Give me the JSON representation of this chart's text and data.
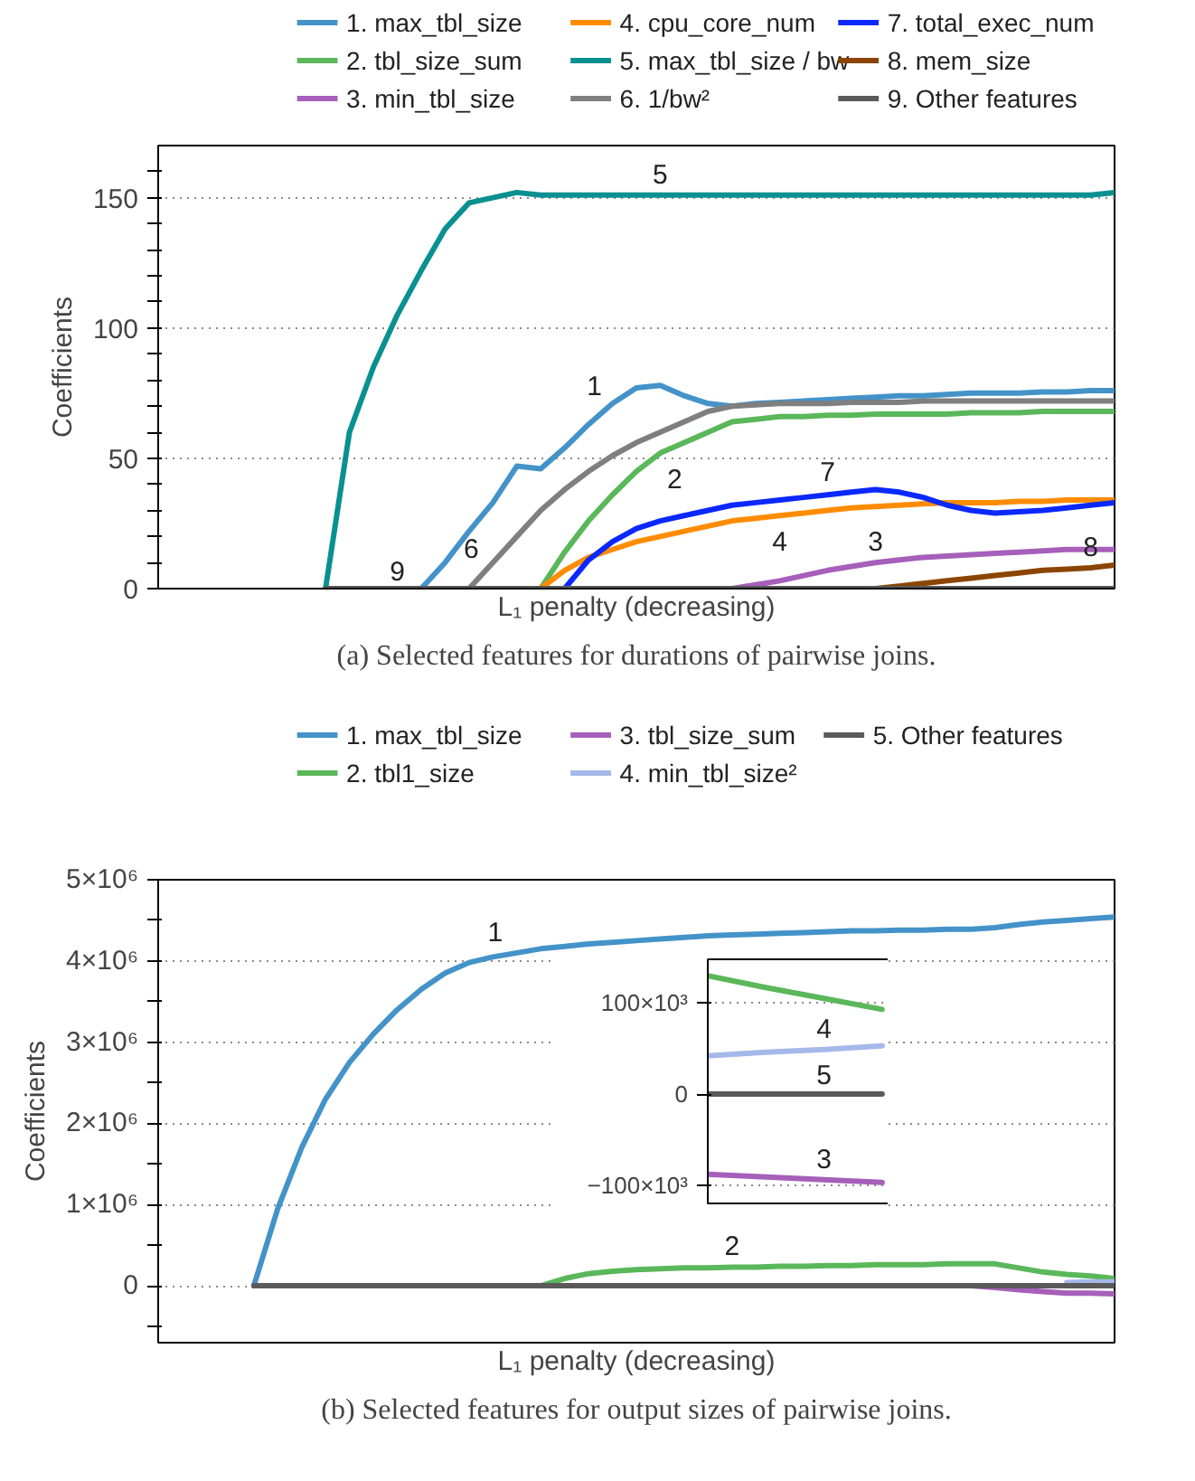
{
  "chart_data": [
    {
      "type": "line",
      "title": "(a) Selected features for durations of pairwise joins.",
      "xlabel": "L₁ penalty (decreasing)",
      "ylabel": "Coefficients",
      "legend": "top",
      "grid": "y",
      "tick_labels": "y",
      "categories": [
        null,
        null,
        null,
        null,
        null,
        null,
        null,
        null,
        null,
        null,
        null,
        null,
        null,
        null,
        null,
        null,
        null,
        null,
        null,
        null,
        null,
        null,
        null,
        null,
        null,
        null,
        null,
        null,
        null,
        null,
        null,
        null,
        null,
        null,
        null,
        null,
        null,
        null,
        null,
        null,
        null
      ],
      "ylim": [
        0,
        170
      ],
      "yticks": [
        0,
        {
          "value": 10,
          "label": null
        },
        {
          "value": 20,
          "label": null
        },
        {
          "value": 30,
          "label": null
        },
        {
          "value": 40,
          "label": null
        },
        50,
        {
          "value": 60,
          "label": null
        },
        {
          "value": 70,
          "label": null
        },
        {
          "value": 80,
          "label": null
        },
        {
          "value": 90,
          "label": null
        },
        100,
        {
          "value": 110,
          "label": null
        },
        {
          "value": 120,
          "label": null
        },
        {
          "value": 130,
          "label": null
        },
        {
          "value": 140,
          "label": null
        },
        150,
        {
          "value": 160,
          "label": null
        }
      ],
      "annotations": [
        "1",
        "2",
        "3",
        "4",
        "5",
        "6",
        "7",
        "8",
        "9"
      ],
      "series": [
        {
          "name": "1. max_tbl_size",
          "color": "#4393c9",
          "values": [
            null,
            null,
            null,
            null,
            null,
            null,
            null,
            null,
            null,
            null,
            null,
            0,
            10,
            22,
            33,
            47,
            46,
            54,
            63,
            71,
            77,
            78,
            74,
            71,
            70,
            71,
            71.5,
            72,
            72.5,
            73,
            73.5,
            74,
            74,
            74.5,
            75,
            75,
            75,
            75.5,
            75.5,
            76,
            76
          ]
        },
        {
          "name": "2. tbl_size_sum",
          "color": "#5ab75a",
          "values": [
            null,
            null,
            null,
            null,
            null,
            null,
            null,
            null,
            null,
            null,
            null,
            null,
            null,
            null,
            null,
            null,
            0,
            14,
            26,
            36,
            45,
            52,
            56,
            60,
            64,
            65,
            66,
            66,
            66.5,
            66.5,
            67,
            67,
            67,
            67,
            67.5,
            67.5,
            67.5,
            68,
            68,
            68,
            68
          ]
        },
        {
          "name": "3. min_tbl_size",
          "color": "#a65fba",
          "values": [
            null,
            null,
            null,
            null,
            null,
            null,
            null,
            null,
            null,
            null,
            null,
            null,
            null,
            null,
            null,
            null,
            null,
            null,
            null,
            null,
            null,
            null,
            null,
            null,
            0,
            1.5,
            3,
            5,
            7,
            8.5,
            10,
            11,
            12,
            12.5,
            13,
            13.5,
            14,
            14.5,
            15,
            15,
            15
          ]
        },
        {
          "name": "4. cpu_core_num",
          "color": "#ff8c00",
          "values": [
            null,
            null,
            null,
            null,
            null,
            null,
            null,
            null,
            null,
            null,
            null,
            null,
            null,
            null,
            null,
            null,
            0,
            7,
            12,
            15,
            18,
            20,
            22,
            24,
            26,
            27,
            28,
            29,
            30,
            31,
            31.5,
            32,
            32.5,
            33,
            33,
            33,
            33.5,
            33.5,
            34,
            34,
            34
          ]
        },
        {
          "name": "5. max_tbl_size / bw",
          "color": "#0a9090",
          "values": [
            null,
            null,
            null,
            null,
            null,
            null,
            null,
            0,
            60,
            85,
            105,
            122,
            138,
            148,
            150,
            152,
            151,
            151,
            151,
            151,
            151,
            151,
            151,
            151,
            151,
            151,
            151,
            151,
            151,
            151,
            151,
            151,
            151,
            151,
            151,
            151,
            151,
            151,
            151,
            151,
            152
          ]
        },
        {
          "name": "6. 1/bw²",
          "color": "#7f7f7f",
          "values": [
            null,
            null,
            null,
            null,
            null,
            null,
            null,
            null,
            null,
            null,
            null,
            null,
            null,
            0,
            10,
            20,
            30,
            38,
            45,
            51,
            56,
            60,
            64,
            68,
            70,
            70.5,
            71,
            71,
            71,
            71.5,
            71.5,
            71.5,
            72,
            72,
            72,
            72,
            72,
            72,
            72,
            72,
            72
          ]
        },
        {
          "name": "7. total_exec_num",
          "color": "#0a28ff",
          "values": [
            null,
            null,
            null,
            null,
            null,
            null,
            null,
            null,
            null,
            null,
            null,
            null,
            null,
            null,
            null,
            null,
            null,
            0,
            11,
            18,
            23,
            26,
            28,
            30,
            32,
            33,
            34,
            35,
            36,
            37,
            38,
            37,
            35,
            32,
            30,
            29,
            29.5,
            30,
            31,
            32,
            33
          ]
        },
        {
          "name": "8. mem_size",
          "color": "#8b4500",
          "values": [
            null,
            null,
            null,
            null,
            null,
            null,
            null,
            null,
            null,
            null,
            null,
            null,
            null,
            null,
            null,
            null,
            null,
            null,
            null,
            null,
            null,
            null,
            null,
            null,
            null,
            null,
            null,
            null,
            null,
            null,
            0,
            1,
            2,
            3,
            4,
            5,
            6,
            7,
            7.5,
            8,
            9
          ]
        },
        {
          "name": "9. Other features",
          "color": "#5a5a5a",
          "values": [
            null,
            null,
            null,
            null,
            null,
            null,
            null,
            0,
            0,
            0,
            0,
            0,
            0,
            0,
            0,
            0,
            0,
            0,
            0,
            0,
            0,
            0,
            0,
            0,
            0,
            0,
            0,
            0,
            0,
            0,
            0,
            0,
            0,
            0,
            0,
            0,
            0,
            0,
            0,
            0,
            0
          ]
        }
      ]
    },
    {
      "type": "line",
      "title": "(b) Selected features for output sizes of pairwise joins.",
      "xlabel": "L₁ penalty (decreasing)",
      "ylabel": "Coefficients",
      "legend": "top",
      "grid": "y",
      "tick_labels": "y",
      "categories": [
        null,
        null,
        null,
        null,
        null,
        null,
        null,
        null,
        null,
        null,
        null,
        null,
        null,
        null,
        null,
        null,
        null,
        null,
        null,
        null,
        null,
        null,
        null,
        null,
        null,
        null,
        null,
        null,
        null,
        null,
        null,
        null,
        null,
        null,
        null,
        null,
        null,
        null,
        null,
        null,
        null
      ],
      "ylim": [
        -700000,
        5000000
      ],
      "yticks": [
        {
          "value": -500000,
          "label": null
        },
        0,
        {
          "value": 500000,
          "label": null
        },
        {
          "value": 1000000,
          "label": "1×10⁶"
        },
        {
          "value": 1500000,
          "label": null
        },
        {
          "value": 2000000,
          "label": "2×10⁶"
        },
        {
          "value": 2500000,
          "label": null
        },
        {
          "value": 3000000,
          "label": "3×10⁶"
        },
        {
          "value": 3500000,
          "label": null
        },
        {
          "value": 4000000,
          "label": "4×10⁶"
        },
        {
          "value": 4500000,
          "label": null
        },
        {
          "value": 5000000,
          "label": "5×10⁶"
        }
      ],
      "annotations": [
        "1",
        "2"
      ],
      "series": [
        {
          "name": "1. max_tbl_size",
          "color": "#4393c9",
          "values": [
            null,
            null,
            null,
            null,
            0,
            950000,
            1700000,
            2300000,
            2750000,
            3100000,
            3400000,
            3650000,
            3850000,
            3980000,
            4050000,
            4100000,
            4150000,
            4180000,
            4210000,
            4230000,
            4250000,
            4270000,
            4290000,
            4310000,
            4320000,
            4330000,
            4340000,
            4350000,
            4360000,
            4370000,
            4370000,
            4380000,
            4380000,
            4390000,
            4390000,
            4410000,
            4450000,
            4480000,
            4500000,
            4520000,
            4540000
          ]
        },
        {
          "name": "2. tbl1_size",
          "color": "#5ab75a",
          "values": [
            null,
            null,
            null,
            null,
            null,
            null,
            null,
            null,
            null,
            null,
            null,
            null,
            null,
            null,
            null,
            null,
            0,
            90000,
            150000,
            180000,
            200000,
            210000,
            220000,
            220000,
            230000,
            230000,
            240000,
            240000,
            250000,
            250000,
            260000,
            260000,
            260000,
            270000,
            270000,
            270000,
            220000,
            170000,
            140000,
            120000,
            90000
          ]
        },
        {
          "name": "3. tbl_size_sum",
          "color": "#a65fba",
          "values": [
            null,
            null,
            null,
            null,
            null,
            null,
            null,
            null,
            null,
            null,
            null,
            null,
            null,
            null,
            null,
            null,
            null,
            null,
            null,
            null,
            null,
            null,
            null,
            null,
            null,
            null,
            null,
            null,
            null,
            null,
            null,
            null,
            null,
            null,
            0,
            -20000,
            -50000,
            -70000,
            -90000,
            -90000,
            -100000
          ]
        },
        {
          "name": "4. min_tbl_size²",
          "color": "#a6b8ea",
          "values": [
            null,
            null,
            null,
            null,
            null,
            null,
            null,
            null,
            null,
            null,
            null,
            null,
            null,
            null,
            null,
            null,
            null,
            null,
            null,
            null,
            null,
            null,
            null,
            null,
            null,
            null,
            null,
            null,
            null,
            null,
            null,
            null,
            null,
            null,
            null,
            null,
            null,
            null,
            40000,
            50000,
            50000
          ]
        },
        {
          "name": "5. Other features",
          "color": "#5a5a5a",
          "values": [
            null,
            null,
            null,
            null,
            0,
            0,
            0,
            0,
            0,
            0,
            0,
            0,
            0,
            0,
            0,
            0,
            0,
            0,
            0,
            0,
            0,
            0,
            0,
            0,
            0,
            0,
            0,
            0,
            0,
            0,
            0,
            0,
            0,
            0,
            0,
            0,
            0,
            0,
            0,
            0,
            0
          ]
        }
      ]
    },
    {
      "type": "line",
      "grid": "y",
      "tick_labels": "y",
      "categories": [
        null,
        null,
        null,
        null
      ],
      "ylim": [
        -120000,
        148000
      ],
      "yticks": [
        {
          "value": -100000,
          "label": "−100×10³"
        },
        0,
        {
          "value": 100000,
          "label": "100×10³"
        }
      ],
      "annotations": [
        "4",
        "5",
        "3"
      ],
      "series": [
        {
          "color": "#a6b8ea",
          "values": [
            42000,
            46000,
            49000,
            53000
          ]
        },
        {
          "color": "#5a5a5a",
          "values": [
            0,
            0,
            0,
            0
          ]
        },
        {
          "color": "#a65fba",
          "values": [
            -88000,
            -91000,
            -94000,
            -97000
          ]
        },
        {
          "color": "#5ab75a",
          "values": [
            130000,
            117000,
            105000,
            93000
          ]
        }
      ]
    }
  ]
}
